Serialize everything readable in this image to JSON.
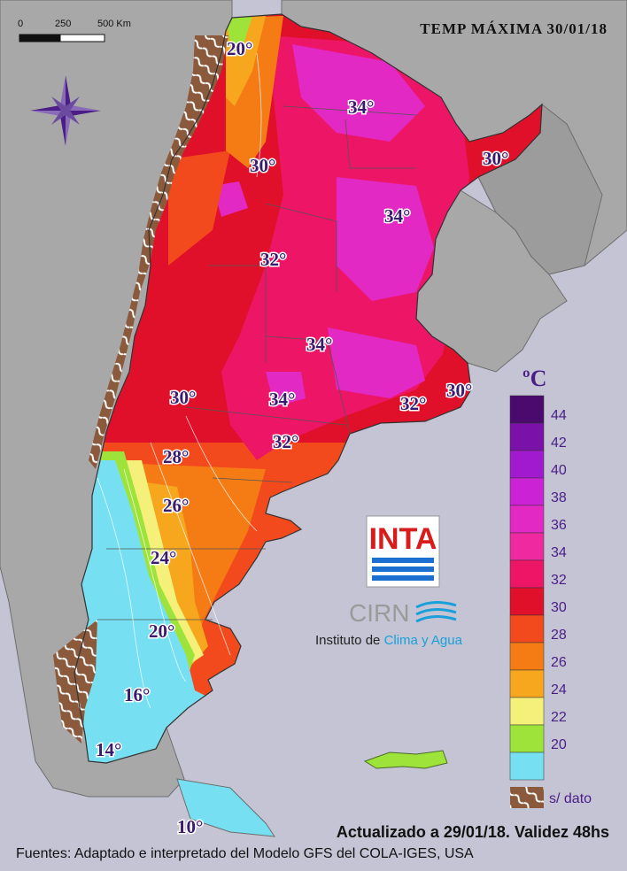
{
  "title": "TEMP MÁXIMA 30/01/18",
  "scale": {
    "labels": [
      "0",
      "250",
      "500 Km"
    ]
  },
  "isotherm_labels": [
    "20°",
    "34°",
    "30°",
    "30°",
    "34°",
    "32°",
    "34°",
    "30°",
    "34°",
    "32°",
    "30°",
    "32°",
    "28°",
    "26°",
    "24°",
    "20°",
    "16°",
    "14°",
    "10°"
  ],
  "legend": {
    "unit": "ºC",
    "items": [
      {
        "label": "44",
        "color": "#4a0a6e"
      },
      {
        "label": "42",
        "color": "#7a11a8"
      },
      {
        "label": "40",
        "color": "#a21ad0"
      },
      {
        "label": "38",
        "color": "#cc22d6"
      },
      {
        "label": "36",
        "color": "#e229c4"
      },
      {
        "label": "34",
        "color": "#ef2aa0"
      },
      {
        "label": "32",
        "color": "#ec1566"
      },
      {
        "label": "30",
        "color": "#e0102a"
      },
      {
        "label": "28",
        "color": "#f24a1c"
      },
      {
        "label": "26",
        "color": "#f57c14"
      },
      {
        "label": "24",
        "color": "#f7a71e"
      },
      {
        "label": "22",
        "color": "#f5f07a"
      },
      {
        "label": "20",
        "color": "#9de33a"
      },
      {
        "label": "",
        "color": "#76e0f2"
      }
    ],
    "nodata_label": "s/ dato"
  },
  "logos": {
    "inta": "INTA",
    "cirn": "CIRN",
    "institute_prefix": "Instituto de ",
    "institute_accent": "Clima y Agua"
  },
  "footer": {
    "updated": "Actualizado a 29/01/18. Validez 48hs",
    "sources": "Fuentes: Adaptado e interpretado del Modelo GFS del COLA-IGES, USA"
  }
}
